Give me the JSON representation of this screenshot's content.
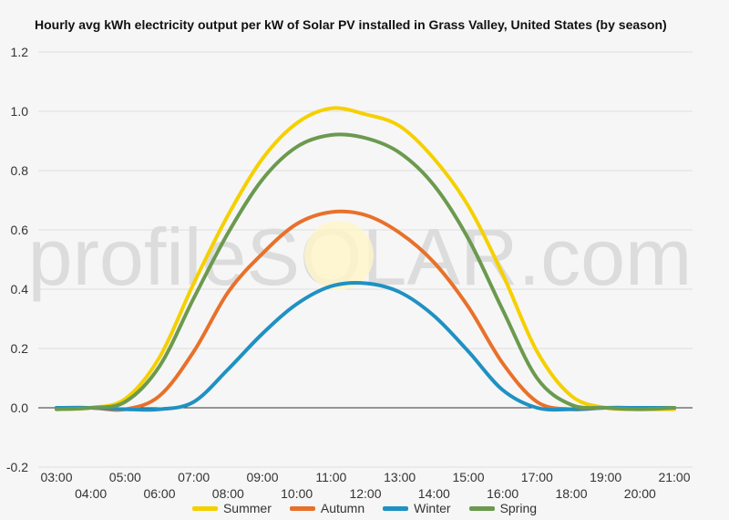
{
  "chart_data": {
    "type": "line",
    "title": "Hourly avg kWh electricity output per kW of Solar PV installed in Grass Valley, United States (by season)",
    "xlabel": "",
    "ylabel": "",
    "ylim": [
      -0.2,
      1.2
    ],
    "yticks": [
      "-0.2",
      "0.0",
      "0.2",
      "0.4",
      "0.6",
      "0.8",
      "1.0",
      "1.2"
    ],
    "ytick_values": [
      -0.2,
      0,
      0.2,
      0.4,
      0.6,
      0.8,
      1.0,
      1.2
    ],
    "categories": [
      "03:00",
      "04:00",
      "05:00",
      "06:00",
      "07:00",
      "08:00",
      "09:00",
      "10:00",
      "11:00",
      "12:00",
      "13:00",
      "14:00",
      "15:00",
      "16:00",
      "17:00",
      "18:00",
      "19:00",
      "20:00",
      "21:00"
    ],
    "grid": true,
    "legend_position": "bottom",
    "watermark": "profileSOLAR.com",
    "series": [
      {
        "name": "Summer",
        "color": "#f5d000",
        "values": [
          -0.005,
          0.0,
          0.03,
          0.17,
          0.42,
          0.65,
          0.84,
          0.96,
          1.01,
          0.99,
          0.95,
          0.84,
          0.68,
          0.45,
          0.19,
          0.04,
          0.0,
          -0.005,
          -0.005
        ]
      },
      {
        "name": "Autumn",
        "color": "#e8712a",
        "values": [
          0.0,
          0.0,
          -0.005,
          0.04,
          0.19,
          0.39,
          0.52,
          0.62,
          0.66,
          0.65,
          0.59,
          0.49,
          0.34,
          0.15,
          0.02,
          -0.005,
          0.0,
          0.0,
          0.0
        ]
      },
      {
        "name": "Winter",
        "color": "#1f91c2",
        "values": [
          0.0,
          0.0,
          -0.005,
          -0.005,
          0.02,
          0.13,
          0.25,
          0.35,
          0.41,
          0.42,
          0.39,
          0.31,
          0.19,
          0.06,
          0.0,
          -0.005,
          0.0,
          0.0,
          0.0
        ]
      },
      {
        "name": "Spring",
        "color": "#6b9a4f",
        "values": [
          -0.005,
          0.0,
          0.02,
          0.14,
          0.37,
          0.59,
          0.77,
          0.88,
          0.92,
          0.91,
          0.86,
          0.75,
          0.57,
          0.33,
          0.1,
          0.01,
          0.0,
          -0.005,
          0.0
        ]
      }
    ]
  }
}
